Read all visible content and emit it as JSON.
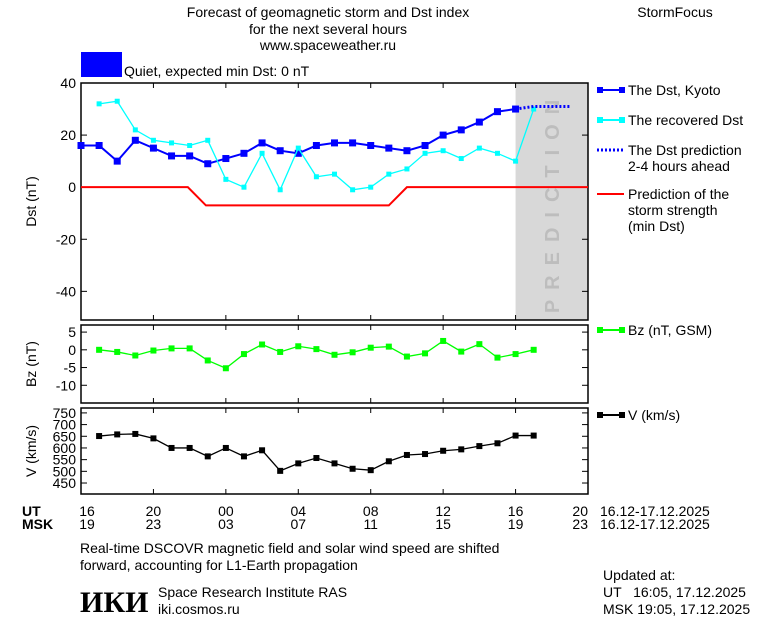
{
  "header": {
    "title_line1": "Forecast of geomagnetic storm and Dst index",
    "title_line2": "for the next several hours",
    "site": "www.spaceweather.ru",
    "brand": "StormFocus",
    "status_text": "Quiet, expected min Dst: 0 nT",
    "status_color": "#0000ff"
  },
  "prediction_label": "PREDICTION",
  "footer": {
    "note_line1": "Real-time DSCOVR magnetic field and solar wind speed are shifted",
    "note_line2": "forward, accounting for L1-Earth propagation",
    "logo_text": "ИКИ",
    "institute": "Space Research Institute RAS",
    "institute_site": "iki.cosmos.ru",
    "updated_label": "Updated at:",
    "updated_ut": "UT   16:05, 17.12.2025",
    "updated_msk": "MSK 19:05, 17.12.2025"
  },
  "time_axis": {
    "ut_label": "UT",
    "msk_label": "MSK",
    "ut_ticks": [
      "16",
      "20",
      "00",
      "04",
      "08",
      "12",
      "16",
      "20"
    ],
    "msk_ticks": [
      "19",
      "23",
      "03",
      "07",
      "11",
      "15",
      "19",
      "23"
    ],
    "ut_date": "16.12-17.12.2025",
    "msk_date": "16.12-17.12.2025",
    "range_hours_from_16UT": [
      0,
      28
    ]
  },
  "chart_data": [
    {
      "type": "line",
      "ylabel": "Dst (nT)",
      "ylim": [
        -51,
        40
      ],
      "yticks": [
        40,
        20,
        0,
        -20,
        -40
      ],
      "x_hours_from_16UT_start": 0,
      "prediction_region_hours": [
        24,
        28
      ],
      "series": [
        {
          "name": "The Dst, Kyoto",
          "color": "#0000ff",
          "marker": "square",
          "x": [
            0,
            1,
            2,
            3,
            4,
            5,
            6,
            7,
            8,
            9,
            10,
            11,
            12,
            13,
            14,
            15,
            16,
            17,
            18,
            19,
            20,
            21,
            22,
            23,
            24
          ],
          "values": [
            16,
            16,
            10,
            18,
            15,
            12,
            12,
            9,
            11,
            13,
            17,
            14,
            13,
            16,
            17,
            17,
            16,
            15,
            14,
            16,
            20,
            22,
            25,
            29,
            30
          ]
        },
        {
          "name": "The recovered Dst",
          "color": "#00ffff",
          "marker": "square",
          "x": [
            1,
            2,
            3,
            4,
            5,
            6,
            7,
            8,
            9,
            10,
            11,
            12,
            13,
            14,
            15,
            16,
            17,
            18,
            19,
            20,
            21,
            22,
            23,
            24,
            25
          ],
          "values": [
            32,
            33,
            22,
            18,
            17,
            16,
            18,
            3,
            0,
            13,
            -1,
            15,
            4,
            5,
            -1,
            0,
            5,
            7,
            13,
            14,
            11,
            15,
            13,
            10,
            30
          ]
        },
        {
          "name": "The Dst prediction 2-4 hours ahead",
          "color": "#0000ff",
          "style": "dotted",
          "x": [
            24,
            25,
            26,
            27
          ],
          "values": [
            30,
            31,
            31,
            31
          ]
        },
        {
          "name": "Prediction of the storm strength (min Dst)",
          "color": "#ff0000",
          "x": [
            0,
            5.9,
            6.9,
            17,
            18,
            28
          ],
          "values": [
            0,
            0,
            -7,
            -7,
            0,
            0
          ]
        }
      ],
      "legend": [
        {
          "lines": [
            "The Dst, Kyoto"
          ]
        },
        {
          "lines": [
            "The recovered Dst"
          ]
        },
        {
          "lines": [
            "The Dst prediction",
            "2-4 hours ahead"
          ]
        },
        {
          "lines": [
            "Prediction of the",
            "storm strength",
            "(min Dst)"
          ]
        }
      ],
      "legend_placement": "right"
    },
    {
      "type": "line",
      "ylabel": "Bz (nT)",
      "ylim": [
        -15,
        7
      ],
      "yticks": [
        5,
        0,
        -5,
        -10
      ],
      "series": [
        {
          "name": "Bz (nT, GSM)",
          "color": "#00ff00",
          "marker": "square",
          "x": [
            1,
            2,
            3,
            4,
            5,
            6,
            7,
            8,
            9,
            10,
            11,
            12,
            13,
            14,
            15,
            16,
            17,
            18,
            19,
            20,
            21,
            22,
            23,
            24,
            25
          ],
          "values": [
            0,
            -0.6,
            -1.6,
            -0.2,
            0.4,
            0.4,
            -3,
            -5.2,
            -1.2,
            1.5,
            -0.6,
            1,
            0.2,
            -1.4,
            -0.7,
            0.6,
            0.9,
            -1.9,
            -1,
            2.5,
            -0.5,
            1.6,
            -2.2,
            -1.2,
            0
          ]
        }
      ],
      "legend": [
        {
          "lines": [
            "Bz (nT, GSM)"
          ]
        }
      ]
    },
    {
      "type": "line",
      "ylabel": "V (km/s)",
      "ylim": [
        403,
        771
      ],
      "yticks": [
        750,
        700,
        650,
        600,
        550,
        500,
        450
      ],
      "series": [
        {
          "name": "V (km/s)",
          "color": "#000000",
          "marker": "square",
          "x": [
            1,
            2,
            3,
            4,
            5,
            6,
            7,
            8,
            9,
            10,
            11,
            12,
            13,
            14,
            15,
            16,
            17,
            18,
            19,
            20,
            21,
            22,
            23,
            24,
            25
          ],
          "values": [
            651,
            658,
            660,
            641,
            600,
            600,
            564,
            600,
            564,
            590,
            502,
            534,
            557,
            534,
            511,
            505,
            543,
            570,
            574,
            588,
            594,
            608,
            620,
            653,
            653
          ]
        }
      ],
      "legend": [
        {
          "lines": [
            "V (km/s)"
          ]
        }
      ]
    }
  ]
}
